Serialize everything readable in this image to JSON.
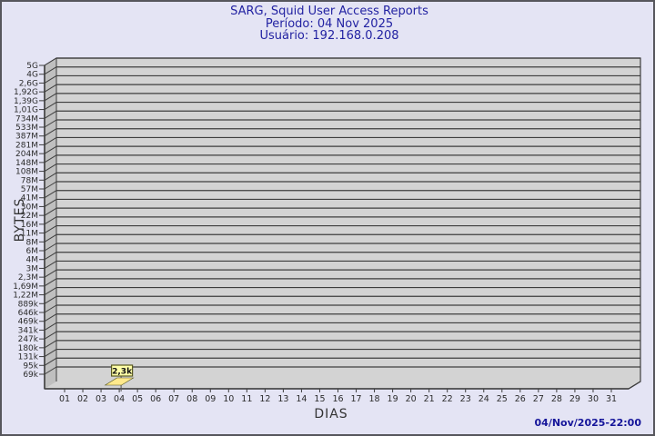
{
  "header": {
    "title": "SARG, Squid User Access Reports",
    "period": "Período: 04 Nov 2025",
    "user": "Usuário: 192.168.0.208"
  },
  "footer": {
    "timestamp": "04/Nov/2025-22:00"
  },
  "chart_data": {
    "type": "bar",
    "projection": "3d",
    "title": "SARG, Squid User Access Reports",
    "subtitle": [
      "Período: 04 Nov 2025",
      "Usuário: 192.168.0.208"
    ],
    "xlabel": "DIAS",
    "ylabel": "BYTES",
    "y_scale": "logarithmic",
    "grid": true,
    "legend": "none",
    "categories": [
      "01",
      "02",
      "03",
      "04",
      "05",
      "06",
      "07",
      "08",
      "09",
      "10",
      "11",
      "12",
      "13",
      "14",
      "15",
      "16",
      "17",
      "18",
      "19",
      "20",
      "21",
      "22",
      "23",
      "24",
      "25",
      "26",
      "27",
      "28",
      "29",
      "30",
      "31"
    ],
    "values": [
      0,
      0,
      0,
      2300,
      0,
      0,
      0,
      0,
      0,
      0,
      0,
      0,
      0,
      0,
      0,
      0,
      0,
      0,
      0,
      0,
      0,
      0,
      0,
      0,
      0,
      0,
      0,
      0,
      0,
      0,
      0
    ],
    "bar_labels": [
      "",
      "",
      "",
      "2,3k",
      "",
      "",
      "",
      "",
      "",
      "",
      "",
      "",
      "",
      "",
      "",
      "",
      "",
      "",
      "",
      "",
      "",
      "",
      "",
      "",
      "",
      "",
      "",
      "",
      "",
      "",
      ""
    ],
    "y_tick_labels": [
      "5G",
      "4G",
      "2,6G",
      "1,92G",
      "1,39G",
      "1,01G",
      "734M",
      "533M",
      "387M",
      "281M",
      "204M",
      "148M",
      "108M",
      "78M",
      "57M",
      "41M",
      "30M",
      "22M",
      "16M",
      "11M",
      "8M",
      "6M",
      "4M",
      "3M",
      "2,3M",
      "1,69M",
      "1,22M",
      "889k",
      "646k",
      "469k",
      "341k",
      "247k",
      "180k",
      "131k",
      "95k",
      "69k"
    ],
    "colors": {
      "background": "#e4e4f4",
      "plot_bg": "#d3d3d3",
      "wall": "#bfbfbf",
      "grid": "#3e3e3e",
      "axis_text": "#2b2b2b",
      "title": "#2222a2",
      "timestamp": "#15159a",
      "bar_fill": "#ffe98c",
      "bar_label_bg": "#ffffa8",
      "bar_label_border": "#5a5a20"
    }
  }
}
